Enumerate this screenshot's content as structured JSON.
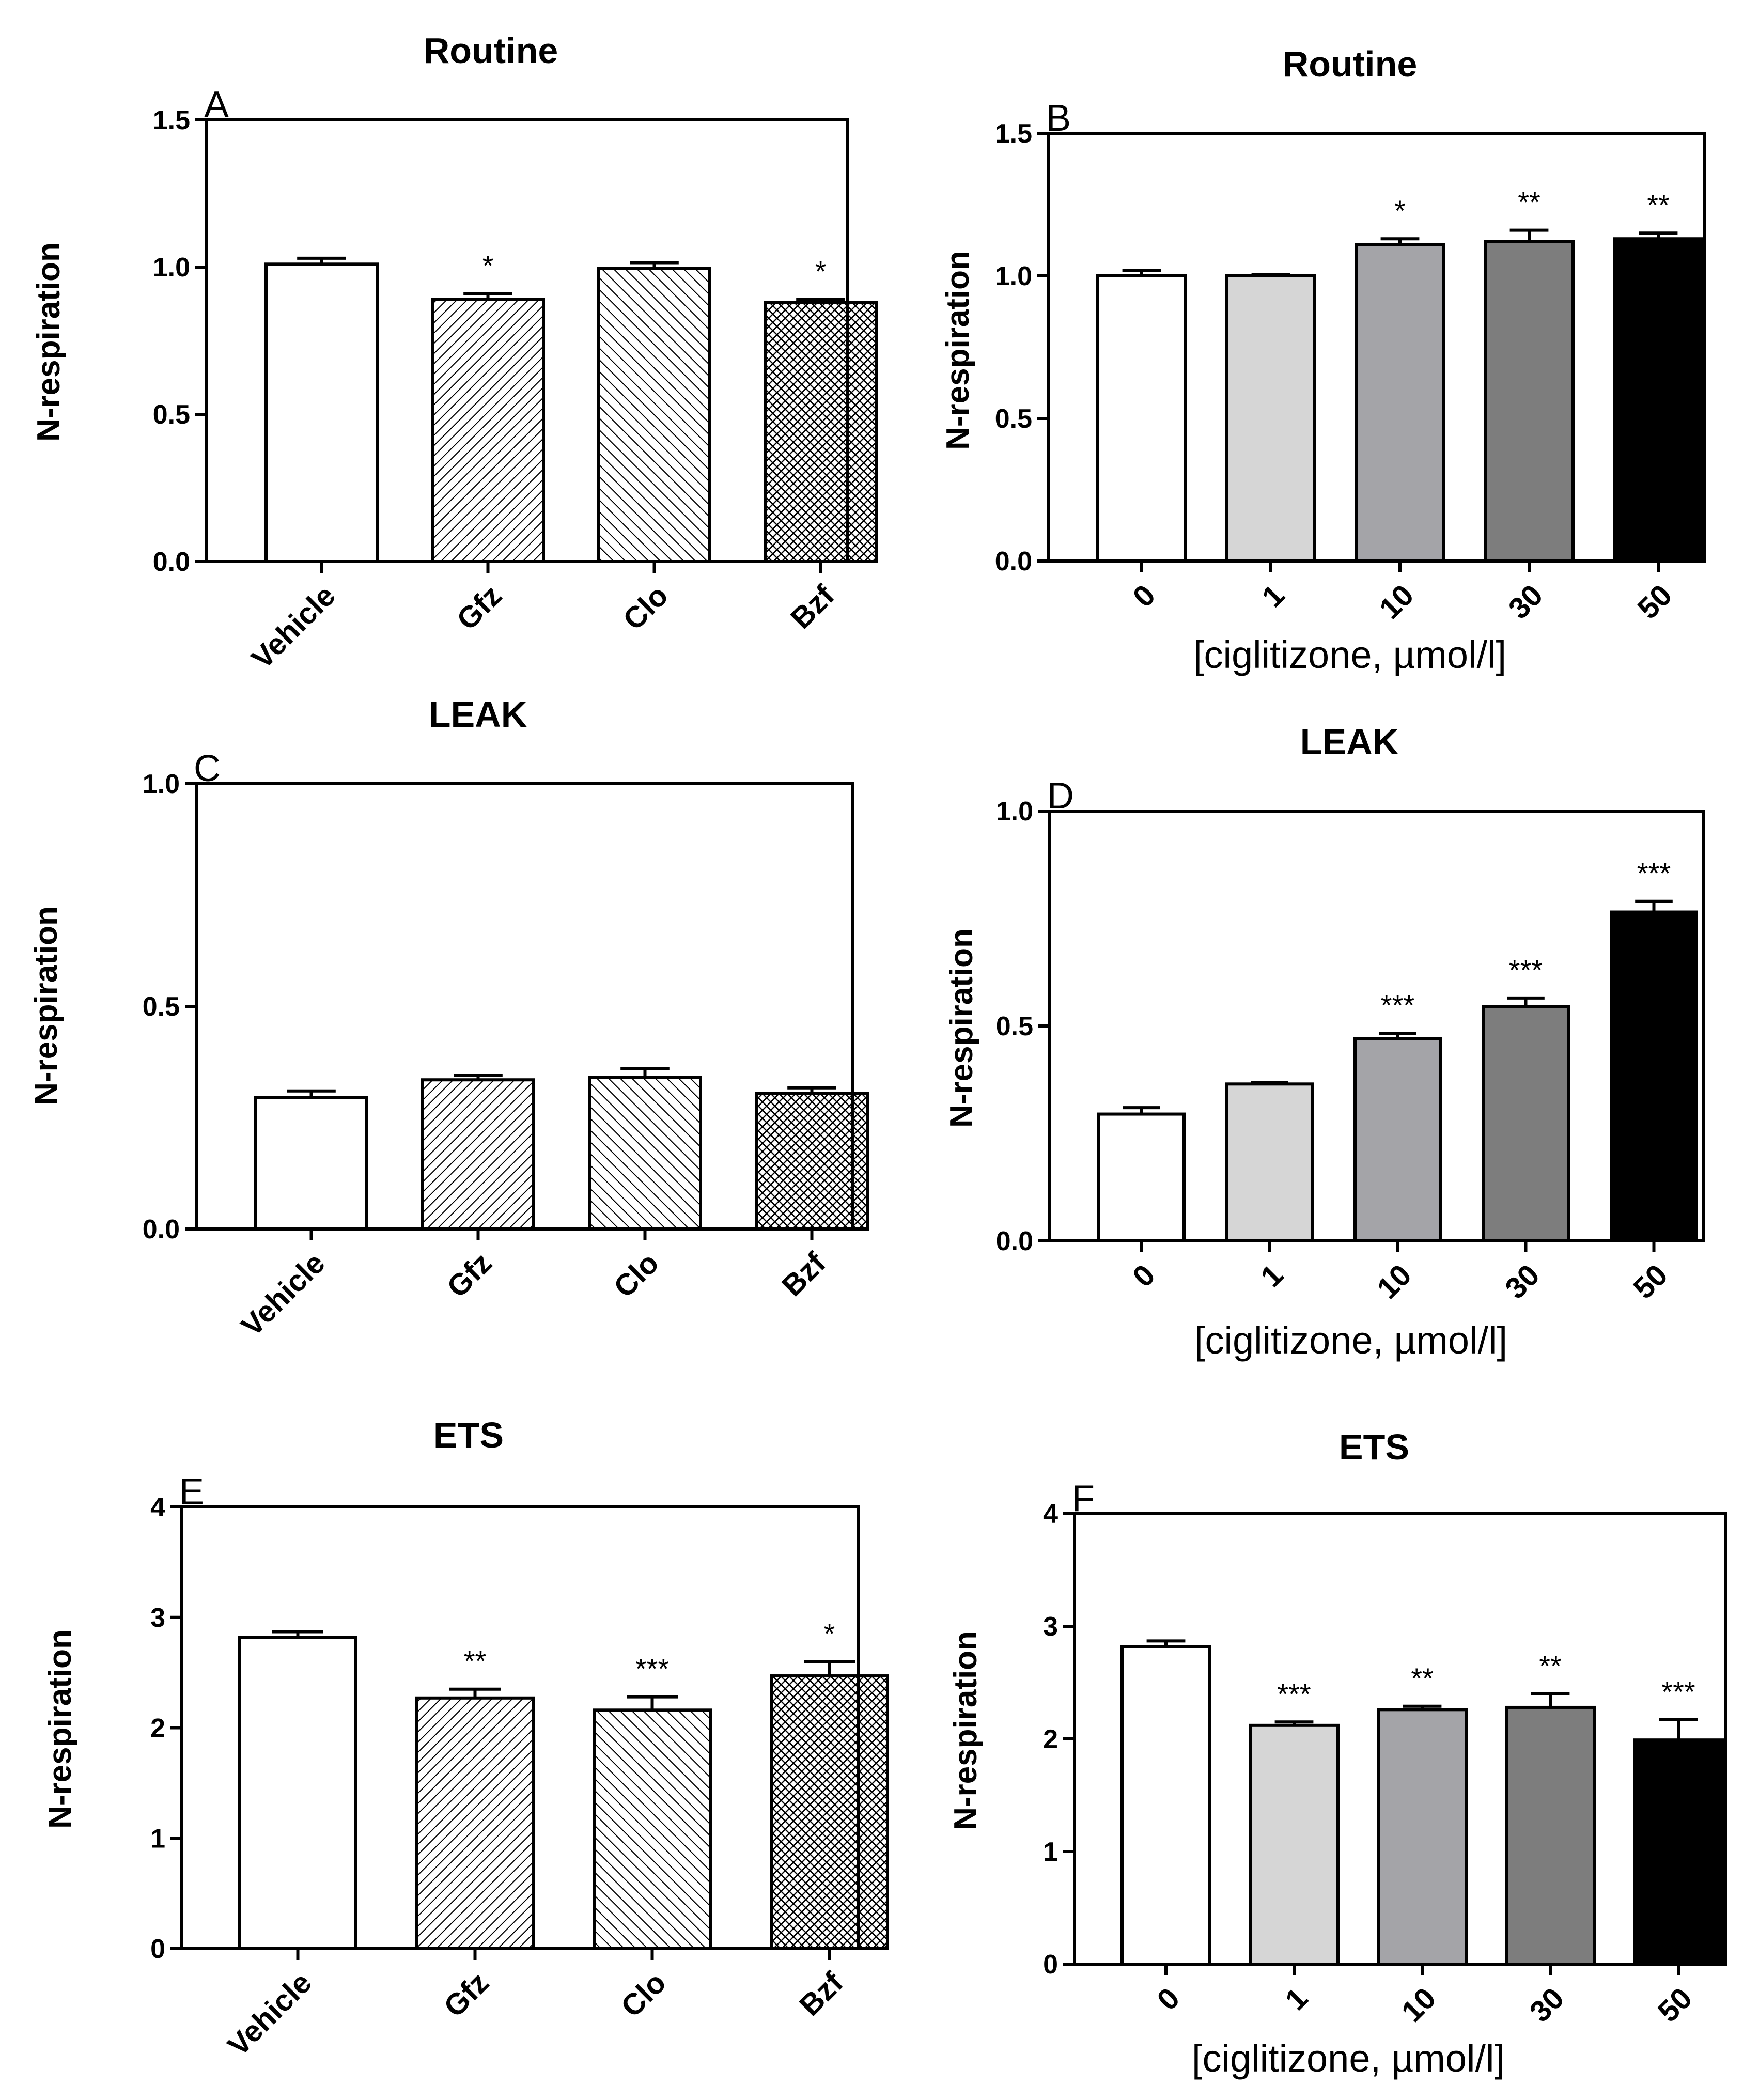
{
  "chart_data": [
    {
      "id": "A",
      "type": "bar",
      "title": "Routine",
      "panel_label": "A",
      "ylabel": "N-respiration",
      "xlabel": "",
      "ylim": [
        0,
        1.5
      ],
      "yticks": [
        "0.0",
        "0.5",
        "1.0",
        "1.5"
      ],
      "categories": [
        "Vehicle",
        "Gfz",
        "Clo",
        "Bzf"
      ],
      "values": [
        1.01,
        0.89,
        0.995,
        0.88
      ],
      "errors": [
        0.02,
        0.02,
        0.02,
        0.01
      ],
      "fills": [
        "white",
        "diag-dense",
        "diag",
        "cross"
      ],
      "significance": [
        "",
        "*",
        "",
        "*"
      ]
    },
    {
      "id": "B",
      "type": "bar",
      "title": "Routine",
      "panel_label": "B",
      "ylabel": "N-respiration",
      "xlabel": "[ciglitizone, µmol/l]",
      "ylim": [
        0,
        1.5
      ],
      "yticks": [
        "0.0",
        "0.5",
        "1.0",
        "1.5"
      ],
      "categories": [
        "0",
        "1",
        "10",
        "30",
        "50"
      ],
      "values": [
        1.0,
        1.0,
        1.11,
        1.12,
        1.13
      ],
      "errors": [
        0.02,
        0.005,
        0.02,
        0.04,
        0.02
      ],
      "fills": [
        "#ffffff",
        "#d6d6d6",
        "#a4a4a8",
        "#7d7d7d",
        "#000000"
      ],
      "significance": [
        "",
        "",
        "*",
        "**",
        "**"
      ]
    },
    {
      "id": "C",
      "type": "bar",
      "title": "LEAK",
      "panel_label": "C",
      "ylabel": "N-respiration",
      "xlabel": "",
      "ylim": [
        0,
        1.0
      ],
      "yticks": [
        "0.0",
        "0.5",
        "1.0"
      ],
      "categories": [
        "Vehicle",
        "Gfz",
        "Clo",
        "Bzf"
      ],
      "values": [
        0.295,
        0.335,
        0.34,
        0.305
      ],
      "errors": [
        0.015,
        0.01,
        0.02,
        0.012
      ],
      "fills": [
        "white",
        "diag-dense",
        "diag",
        "cross"
      ],
      "significance": [
        "",
        "",
        "",
        ""
      ]
    },
    {
      "id": "D",
      "type": "bar",
      "title": "LEAK",
      "panel_label": "D",
      "ylabel": "N-respiration",
      "xlabel": "[ciglitizone, µmol/l]",
      "ylim": [
        0,
        1.0
      ],
      "yticks": [
        "0.0",
        "0.5",
        "1.0"
      ],
      "categories": [
        "0",
        "1",
        "10",
        "30",
        "50"
      ],
      "values": [
        0.295,
        0.365,
        0.47,
        0.545,
        0.765
      ],
      "errors": [
        0.015,
        0.004,
        0.013,
        0.02,
        0.025
      ],
      "fills": [
        "#ffffff",
        "#d6d6d6",
        "#a4a4a8",
        "#7d7d7d",
        "#000000"
      ],
      "significance": [
        "",
        "",
        "***",
        "***",
        "***"
      ]
    },
    {
      "id": "E",
      "type": "bar",
      "title": "ETS",
      "panel_label": "E",
      "ylabel": "N-respiration",
      "xlabel": "",
      "ylim": [
        0,
        4
      ],
      "yticks": [
        "0",
        "1",
        "2",
        "3",
        "4"
      ],
      "categories": [
        "Vehicle",
        "Gfz",
        "Clo",
        "Bzf"
      ],
      "values": [
        2.82,
        2.27,
        2.16,
        2.47
      ],
      "errors": [
        0.05,
        0.08,
        0.12,
        0.13
      ],
      "fills": [
        "white",
        "diag-dense",
        "diag",
        "cross"
      ],
      "significance": [
        "",
        "**",
        "***",
        "*"
      ]
    },
    {
      "id": "F",
      "type": "bar",
      "title": "ETS",
      "panel_label": "F",
      "ylabel": "N-respiration",
      "xlabel": "[ciglitizone, µmol/l]",
      "ylim": [
        0,
        4
      ],
      "yticks": [
        "0",
        "1",
        "2",
        "3",
        "4"
      ],
      "categories": [
        "0",
        "1",
        "10",
        "30",
        "50"
      ],
      "values": [
        2.82,
        2.12,
        2.26,
        2.28,
        1.99
      ],
      "errors": [
        0.05,
        0.03,
        0.03,
        0.12,
        0.18
      ],
      "fills": [
        "#ffffff",
        "#d6d6d6",
        "#a4a4a8",
        "#7d7d7d",
        "#000000"
      ],
      "significance": [
        "",
        "***",
        "**",
        "**",
        "***"
      ]
    }
  ]
}
